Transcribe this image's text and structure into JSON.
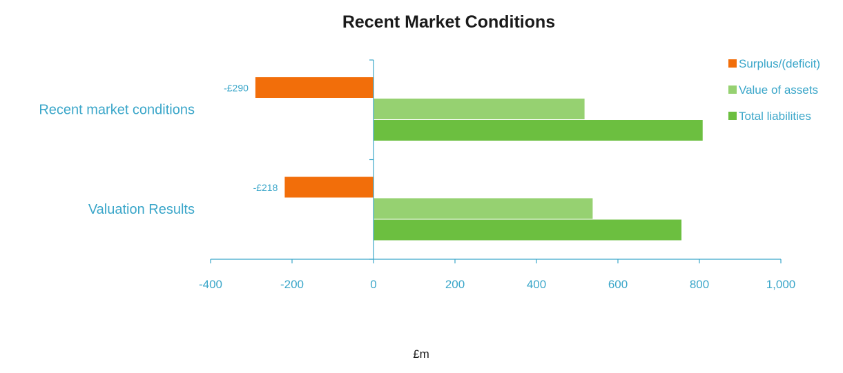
{
  "chart_data": {
    "type": "bar",
    "orientation": "horizontal",
    "title": "Recent Market Conditions",
    "xlabel": "£m",
    "ylabel": "",
    "categories": [
      "Recent market conditions",
      "Valuation Results"
    ],
    "series": [
      {
        "name": "Surplus/(deficit)",
        "values": [
          -290,
          -218
        ],
        "labels": [
          "-£290",
          "-£218"
        ],
        "color": "#f26e0a"
      },
      {
        "name": "Value of assets",
        "values": [
          518,
          538
        ],
        "color": "#96d171"
      },
      {
        "name": "Total liabilities",
        "values": [
          808,
          756
        ],
        "color": "#6cbf40"
      }
    ],
    "xlim": [
      -400,
      1000
    ],
    "xticks": [
      -400,
      -200,
      0,
      200,
      400,
      600,
      800,
      1000
    ],
    "xtick_labels": [
      "-400",
      "-200",
      "0",
      "200",
      "400",
      "600",
      "800",
      "1,000"
    ],
    "grid": false,
    "legend_position": "top-right"
  }
}
